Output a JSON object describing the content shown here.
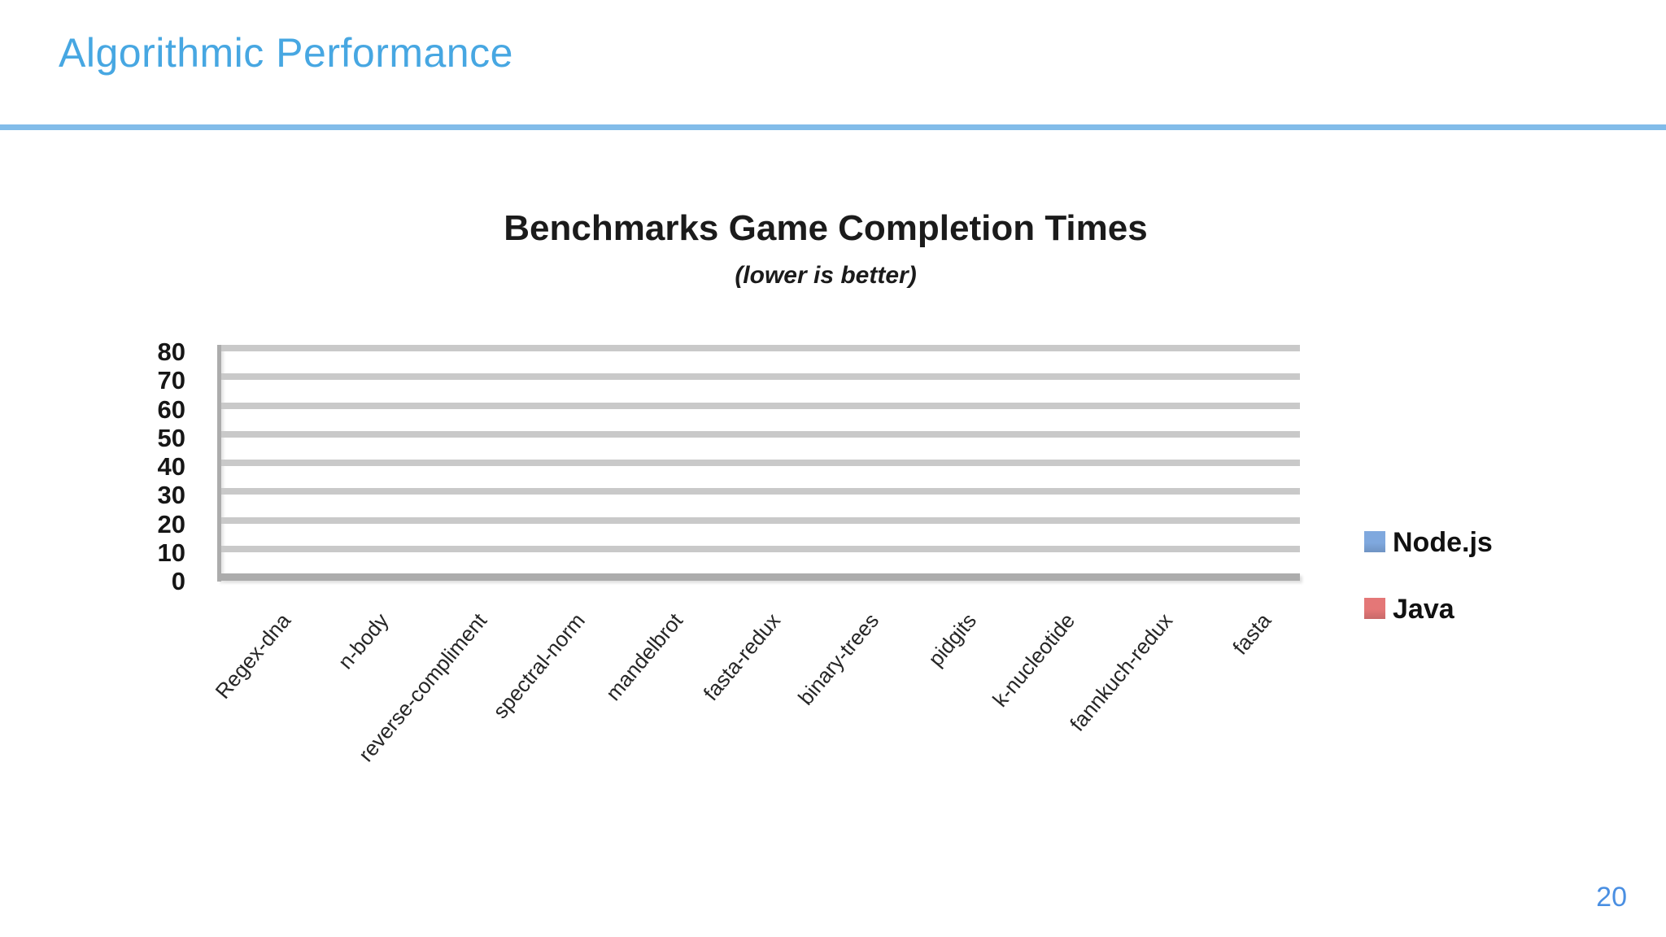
{
  "slide": {
    "title": "Algorithmic Performance",
    "title_color": "#47A7E2",
    "divider_color": "#82BCE9"
  },
  "chart_data": {
    "type": "bar",
    "title": "Benchmarks Game Completion Times",
    "subtitle": "(lower is better)",
    "categories": [
      "Regex-dna",
      "n-body",
      "reverse-compliment",
      "spectral-norm",
      "mandelbrot",
      "fasta-redux",
      "binary-trees",
      "pidgits",
      "k-nucleotide",
      "fannkuch-redux",
      "fasta"
    ],
    "series": [
      {
        "name": "Node.js",
        "color": "#7FA8DE",
        "values": []
      },
      {
        "name": "Java",
        "color": "#E47777",
        "values": []
      }
    ],
    "bars_visible": false,
    "ylim": [
      0,
      80
    ],
    "yticks": [
      0,
      10,
      20,
      30,
      40,
      50,
      60,
      70,
      80
    ],
    "grid": "horizontal",
    "legend_position": "right"
  },
  "footer": {
    "page_number": "20",
    "color": "#4A8FE2"
  }
}
